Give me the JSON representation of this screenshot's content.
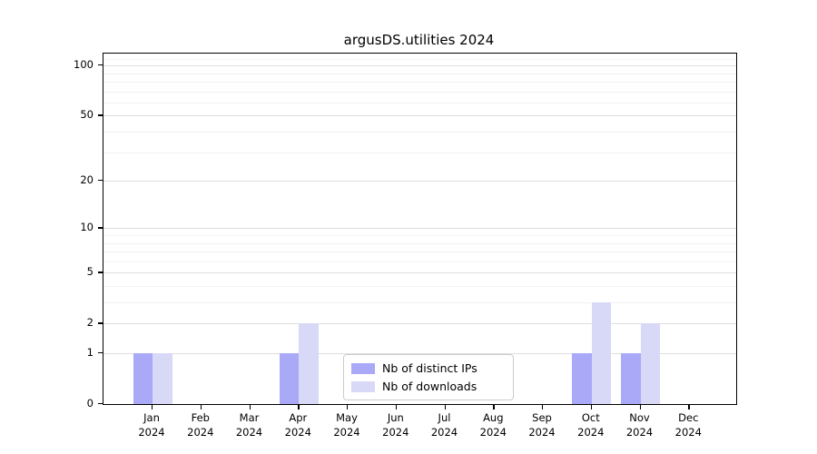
{
  "chart_data": {
    "type": "bar",
    "title": "argusDS.utilities 2024",
    "categories": [
      "Jan",
      "Feb",
      "Mar",
      "Apr",
      "May",
      "Jun",
      "Jul",
      "Aug",
      "Sep",
      "Oct",
      "Nov",
      "Dec"
    ],
    "category_year": "2024",
    "series": [
      {
        "name": "Nb of distinct IPs",
        "color": "#a9a9f8",
        "values": [
          1,
          0,
          0,
          1,
          0,
          0,
          0,
          0,
          0,
          1,
          1,
          0
        ]
      },
      {
        "name": "Nb of downloads",
        "color": "#d8d8f7",
        "values": [
          1,
          0,
          0,
          2,
          0,
          0,
          0,
          0,
          0,
          3,
          2,
          0
        ]
      }
    ],
    "yscale": "log1p",
    "yticks": [
      0,
      1,
      2,
      5,
      10,
      20,
      50,
      100
    ],
    "minor_yticks": [
      3,
      4,
      6,
      7,
      8,
      9,
      30,
      40,
      60,
      70,
      80,
      90,
      110
    ],
    "ylim": [
      0,
      118
    ],
    "xlabel": "",
    "ylabel": "",
    "grid": true,
    "legend_position": "lower center",
    "colors": {
      "major_grid": "#dedede",
      "minor_grid": "#f2f2f2",
      "spine": "#000000",
      "background": "#ffffff"
    }
  }
}
